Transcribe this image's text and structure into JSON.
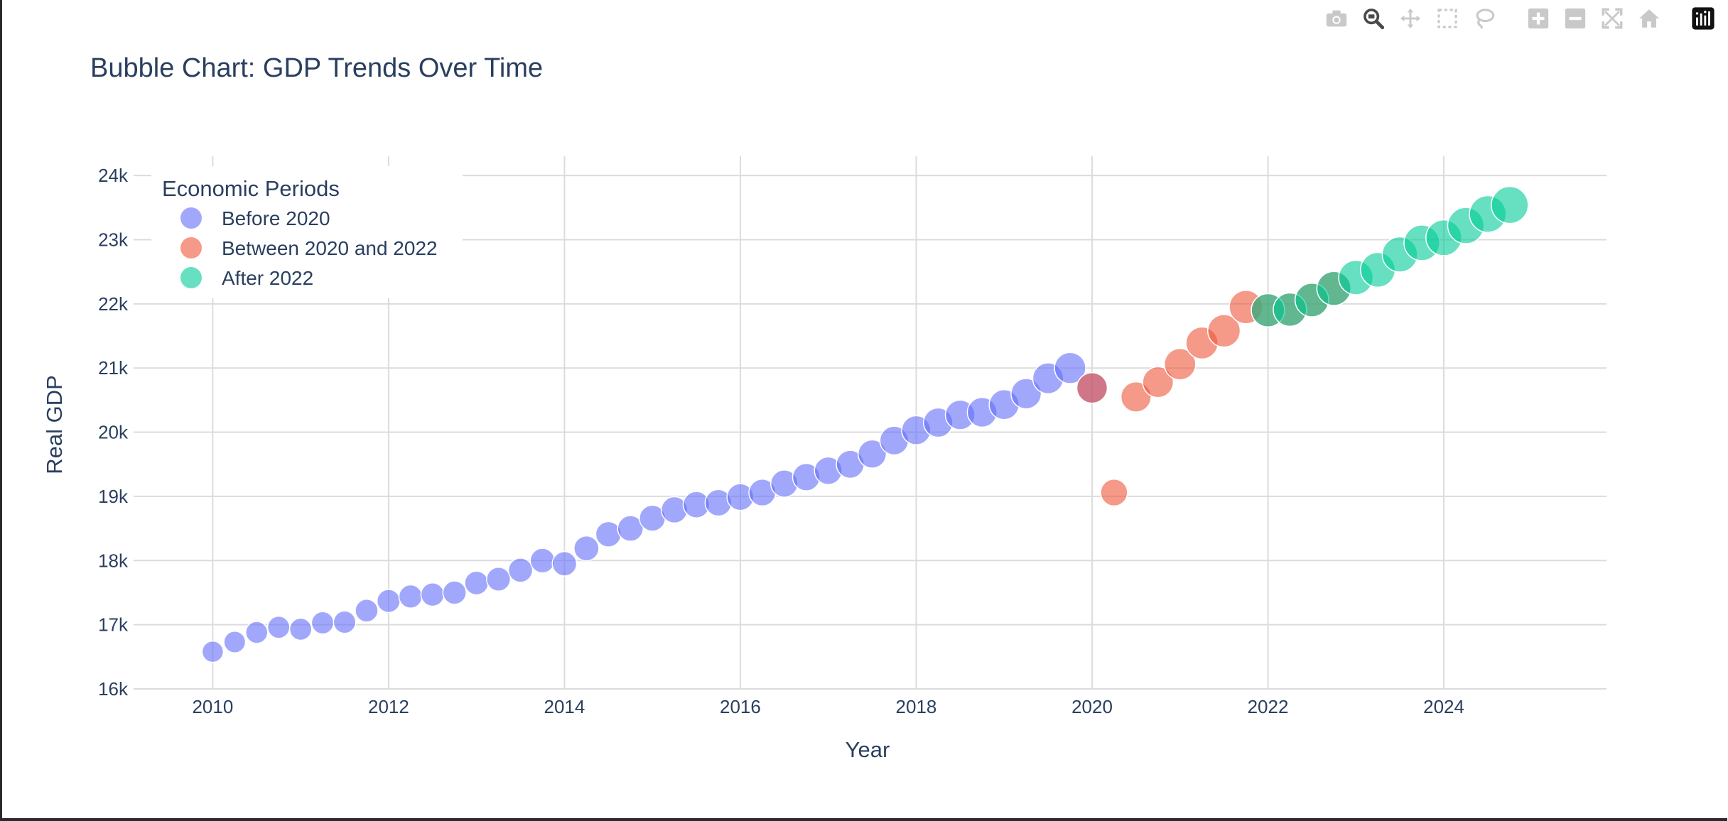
{
  "toolbar": {
    "buttons": [
      {
        "name": "camera-icon",
        "label": "Download plot as a png"
      },
      {
        "name": "zoom-icon",
        "label": "Zoom"
      },
      {
        "name": "pan-icon",
        "label": "Pan"
      },
      {
        "name": "box-select-icon",
        "label": "Box Select"
      },
      {
        "name": "lasso-select-icon",
        "label": "Lasso Select"
      },
      {
        "name": "zoom-in-icon",
        "label": "Zoom in"
      },
      {
        "name": "zoom-out-icon",
        "label": "Zoom out"
      },
      {
        "name": "autoscale-icon",
        "label": "Autoscale"
      },
      {
        "name": "reset-axes-icon",
        "label": "Reset axes"
      },
      {
        "name": "plotly-logo-icon",
        "label": "Produced with Plotly"
      }
    ],
    "active": "zoom-icon"
  },
  "chart_data": {
    "type": "scatter",
    "title": "Bubble Chart: GDP Trends Over Time",
    "xlabel": "Year",
    "ylabel": "Real GDP",
    "xlim": [
      2009.1,
      2025.85
    ],
    "ylim": [
      16000,
      24300
    ],
    "x_ticks": [
      2010,
      2012,
      2014,
      2016,
      2018,
      2020,
      2022,
      2024
    ],
    "x_tick_labels": [
      "2010",
      "2012",
      "2014",
      "2016",
      "2018",
      "2020",
      "2022",
      "2024"
    ],
    "y_ticks": [
      16000,
      17000,
      18000,
      19000,
      20000,
      21000,
      22000,
      23000,
      24000
    ],
    "y_tick_labels": [
      "16k",
      "17k",
      "18k",
      "19k",
      "20k",
      "21k",
      "22k",
      "23k",
      "24k"
    ],
    "grid": true,
    "bubble_size": "larger bubbles for higher Real GDP",
    "legend": {
      "title": "Economic Periods",
      "placement": "top-left"
    },
    "series": [
      {
        "name": "Before 2020",
        "color": "#636efa",
        "x": [
          2010.0,
          2010.25,
          2010.5,
          2010.75,
          2011.0,
          2011.25,
          2011.5,
          2011.75,
          2012.0,
          2012.25,
          2012.5,
          2012.75,
          2013.0,
          2013.25,
          2013.5,
          2013.75,
          2014.0,
          2014.25,
          2014.5,
          2014.75,
          2015.0,
          2015.25,
          2015.5,
          2015.75,
          2016.0,
          2016.25,
          2016.5,
          2016.75,
          2017.0,
          2017.25,
          2017.5,
          2017.75,
          2018.0,
          2018.25,
          2018.5,
          2018.75,
          2019.0,
          2019.25,
          2019.5,
          2019.75,
          2020.0
        ],
        "y": [
          16580,
          16730,
          16880,
          16960,
          16930,
          17030,
          17040,
          17220,
          17370,
          17440,
          17470,
          17500,
          17650,
          17710,
          17850,
          18000,
          17950,
          18190,
          18410,
          18500,
          18660,
          18790,
          18870,
          18900,
          18990,
          19060,
          19200,
          19300,
          19400,
          19500,
          19660,
          19870,
          20030,
          20150,
          20270,
          20310,
          20430,
          20600,
          20840,
          21000,
          20690
        ]
      },
      {
        "name": "Between 2020 and 2022",
        "color": "#ef553b",
        "x": [
          2020.0,
          2020.25,
          2020.5,
          2020.75,
          2021.0,
          2021.25,
          2021.5,
          2021.75,
          2022.0,
          2022.25,
          2022.5,
          2022.75
        ],
        "y": [
          20690,
          19060,
          20550,
          20780,
          21060,
          21390,
          21580,
          21950,
          21900,
          21910,
          22060,
          22240
        ]
      },
      {
        "name": "After 2022",
        "color": "#00cc96",
        "x": [
          2022.0,
          2022.25,
          2022.5,
          2022.75,
          2023.0,
          2023.25,
          2023.5,
          2023.75,
          2024.0,
          2024.25,
          2024.5,
          2024.75
        ],
        "y": [
          21900,
          21910,
          22060,
          22240,
          22410,
          22530,
          22770,
          22950,
          23030,
          23220,
          23400,
          23540
        ]
      }
    ]
  }
}
